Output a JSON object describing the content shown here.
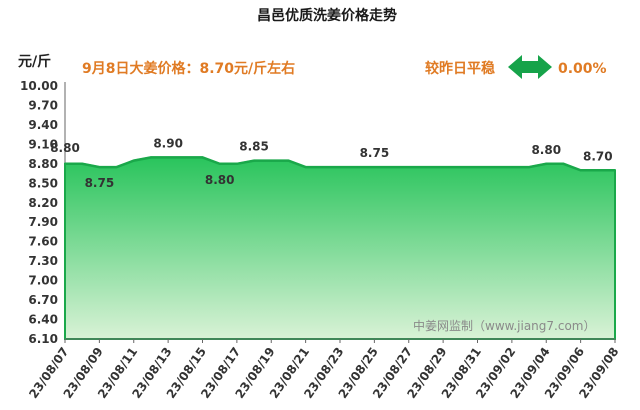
{
  "chart_data": {
    "type": "area",
    "title": "昌邑优质洗姜价格走势",
    "ylabel": "元/斤",
    "ylim": [
      6.1,
      10.0
    ],
    "yticks": [
      "10.00",
      "9.70",
      "9.40",
      "9.10",
      "8.80",
      "8.50",
      "8.20",
      "7.90",
      "7.60",
      "7.30",
      "7.00",
      "6.70",
      "6.40",
      "6.10"
    ],
    "xticks": [
      "23/08/07",
      "23/08/09",
      "23/08/11",
      "23/08/13",
      "23/08/15",
      "23/08/17",
      "23/08/19",
      "23/08/21",
      "23/08/23",
      "23/08/25",
      "23/08/27",
      "23/08/29",
      "23/08/31",
      "23/09/02",
      "23/09/04",
      "23/09/06",
      "23/09/08"
    ],
    "x": [
      "23/08/07",
      "23/08/08",
      "23/08/09",
      "23/08/10",
      "23/08/11",
      "23/08/12",
      "23/08/13",
      "23/08/14",
      "23/08/15",
      "23/08/16",
      "23/08/17",
      "23/08/18",
      "23/08/19",
      "23/08/20",
      "23/08/21",
      "23/08/22",
      "23/08/23",
      "23/08/24",
      "23/08/25",
      "23/08/26",
      "23/08/27",
      "23/08/28",
      "23/08/29",
      "23/08/30",
      "23/08/31",
      "23/09/01",
      "23/09/02",
      "23/09/03",
      "23/09/04",
      "23/09/05",
      "23/09/06",
      "23/09/07",
      "23/09/08"
    ],
    "values": [
      8.8,
      8.8,
      8.75,
      8.75,
      8.85,
      8.9,
      8.9,
      8.9,
      8.9,
      8.8,
      8.8,
      8.85,
      8.85,
      8.85,
      8.75,
      8.75,
      8.75,
      8.75,
      8.75,
      8.75,
      8.75,
      8.75,
      8.75,
      8.75,
      8.75,
      8.75,
      8.75,
      8.75,
      8.8,
      8.8,
      8.7,
      8.7,
      8.7
    ],
    "data_labels": [
      {
        "x": "23/08/07",
        "text": "8.80"
      },
      {
        "x": "23/08/09",
        "text": "8.75"
      },
      {
        "x": "23/08/13",
        "text": "8.90"
      },
      {
        "x": "23/08/16",
        "text": "8.80"
      },
      {
        "x": "23/08/18",
        "text": "8.85"
      },
      {
        "x": "23/08/25",
        "text": "8.75"
      },
      {
        "x": "23/09/04",
        "text": "8.80"
      },
      {
        "x": "23/09/07",
        "text": "8.70"
      }
    ],
    "grid": false,
    "colors": {
      "line": "#1aa84a",
      "fill_top": "#29c45c",
      "fill_bottom": "#d9f2d6",
      "accent": "#e07b24"
    }
  },
  "annotations": {
    "price_note": "9月8日大姜价格：8.70元/斤左右",
    "compare_label": "较昨日平稳",
    "change_value": "0.00%",
    "watermark": "中姜网监制（www.jiang7.com）"
  }
}
